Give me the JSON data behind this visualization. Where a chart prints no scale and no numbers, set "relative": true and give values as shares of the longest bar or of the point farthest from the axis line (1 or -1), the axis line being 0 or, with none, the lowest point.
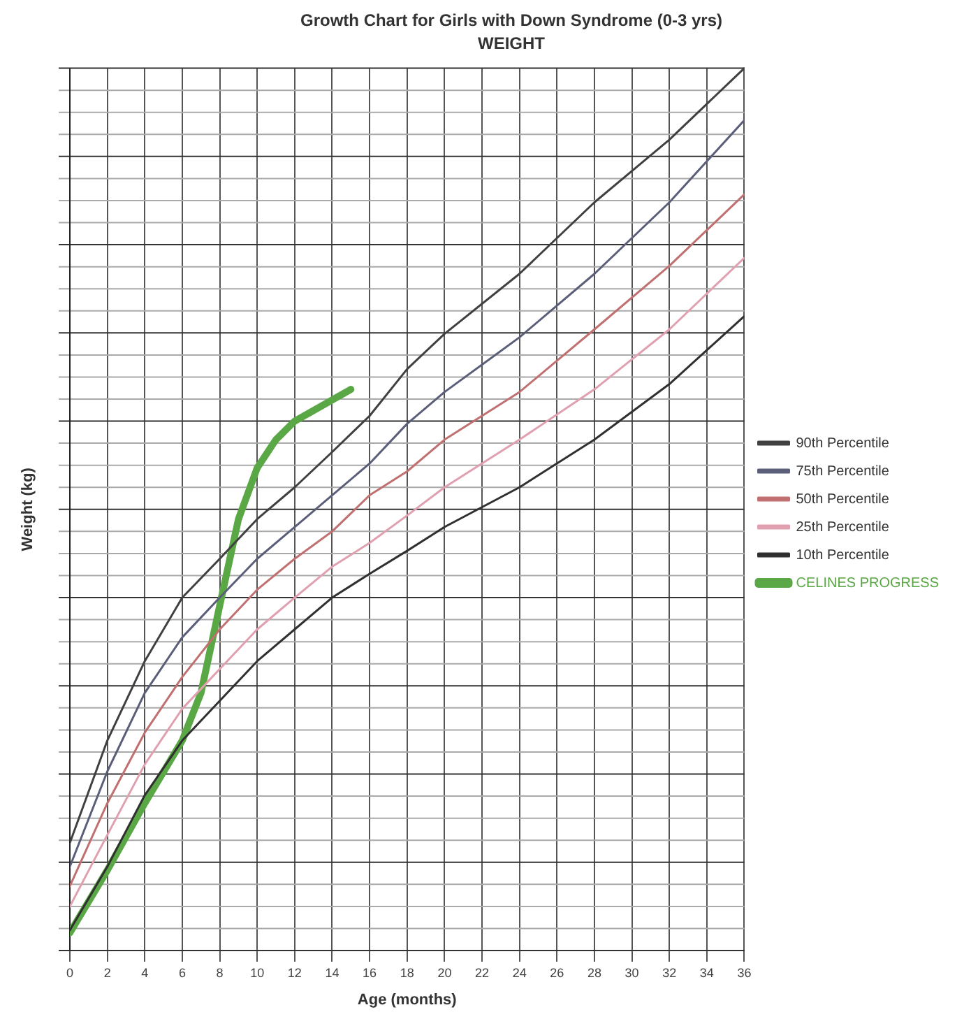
{
  "chart_data": {
    "type": "line",
    "title": "Growth Chart for Girls with Down Syndrome (0-3 yrs)",
    "subtitle": "WEIGHT",
    "xlabel": "Age (months)",
    "ylabel": "Weight (kg)",
    "relative": true,
    "x": [
      0,
      2,
      4,
      6,
      8,
      10,
      12,
      14,
      16,
      18,
      20,
      24,
      28,
      32,
      36
    ],
    "xlim": [
      0,
      36
    ],
    "xticks": [
      0,
      2,
      4,
      6,
      8,
      10,
      12,
      14,
      16,
      18,
      20,
      22,
      24,
      26,
      28,
      30,
      32,
      34,
      36
    ],
    "series": [
      {
        "name": "90th Percentile",
        "color": "#404040",
        "values": [
          0.122,
          0.238,
          0.328,
          0.4,
          0.444,
          0.489,
          0.525,
          0.565,
          0.606,
          0.659,
          0.699,
          0.767,
          0.848,
          0.919,
          1
        ]
      },
      {
        "name": "75th Percentile",
        "color": "#5a5e78",
        "values": [
          0.095,
          0.203,
          0.292,
          0.355,
          0.4,
          0.444,
          0.48,
          0.516,
          0.552,
          0.597,
          0.633,
          0.695,
          0.767,
          0.848,
          0.941
        ]
      },
      {
        "name": "50th Percentile",
        "color": "#c07070",
        "values": [
          0.073,
          0.167,
          0.247,
          0.31,
          0.364,
          0.409,
          0.444,
          0.475,
          0.516,
          0.543,
          0.579,
          0.633,
          0.704,
          0.776,
          0.857
        ]
      },
      {
        "name": "25th Percentile",
        "color": "#e0a0b0",
        "values": [
          0.05,
          0.131,
          0.211,
          0.274,
          0.319,
          0.364,
          0.4,
          0.435,
          0.462,
          0.493,
          0.525,
          0.579,
          0.636,
          0.704,
          0.785
        ]
      },
      {
        "name": "10th Percentile",
        "color": "#303030",
        "values": [
          0.023,
          0.095,
          0.176,
          0.238,
          0.283,
          0.328,
          0.364,
          0.4,
          0.427,
          0.453,
          0.48,
          0.525,
          0.579,
          0.642,
          0.719
        ]
      },
      {
        "name": "CELINES PROGRESS",
        "color": "#5aa845",
        "x": [
          0,
          2,
          4,
          6,
          7,
          8,
          9,
          10,
          11,
          12,
          13.5,
          15
        ],
        "values": [
          0.02,
          0.091,
          0.167,
          0.238,
          0.292,
          0.391,
          0.489,
          0.547,
          0.579,
          0.6,
          0.618,
          0.636
        ]
      }
    ],
    "grid": true,
    "legend": "right",
    "marker": "none",
    "line_style": "solid"
  }
}
